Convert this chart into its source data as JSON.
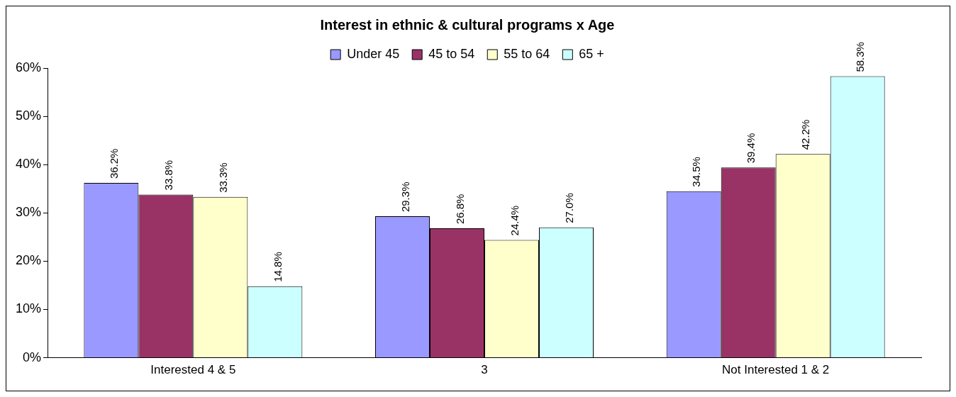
{
  "chart_data": {
    "type": "bar",
    "title": "Interest in ethnic & cultural programs x Age",
    "categories": [
      "Interested 4 & 5",
      "3",
      "Not Interested 1 & 2"
    ],
    "series": [
      {
        "name": "Under 45",
        "color": "#9999ff",
        "values": [
          36.2,
          29.3,
          34.5
        ],
        "value_labels": [
          "36.2%",
          "29.3%",
          "34.5%"
        ]
      },
      {
        "name": "45 to 54",
        "color": "#993366",
        "values": [
          33.8,
          26.8,
          39.4
        ],
        "value_labels": [
          "33.8%",
          "26.8%",
          "39.4%"
        ]
      },
      {
        "name": "55 to 64",
        "color": "#ffffcc",
        "values": [
          33.3,
          24.4,
          42.2
        ],
        "value_labels": [
          "33.3%",
          "24.4%",
          "42.2%"
        ]
      },
      {
        "name": "65 +",
        "color": "#ccffff",
        "values": [
          14.8,
          27.0,
          58.3
        ],
        "value_labels": [
          "14.8%",
          "27.0%",
          "58.3%"
        ]
      }
    ],
    "ylim": [
      0,
      60
    ],
    "yticks": [
      {
        "value": 0,
        "label": "0%"
      },
      {
        "value": 10,
        "label": "10%"
      },
      {
        "value": 20,
        "label": "20%"
      },
      {
        "value": 30,
        "label": "30%"
      },
      {
        "value": 40,
        "label": "40%"
      },
      {
        "value": 50,
        "label": "50%"
      },
      {
        "value": 60,
        "label": "60%"
      }
    ],
    "grid": false,
    "legend": "top"
  }
}
